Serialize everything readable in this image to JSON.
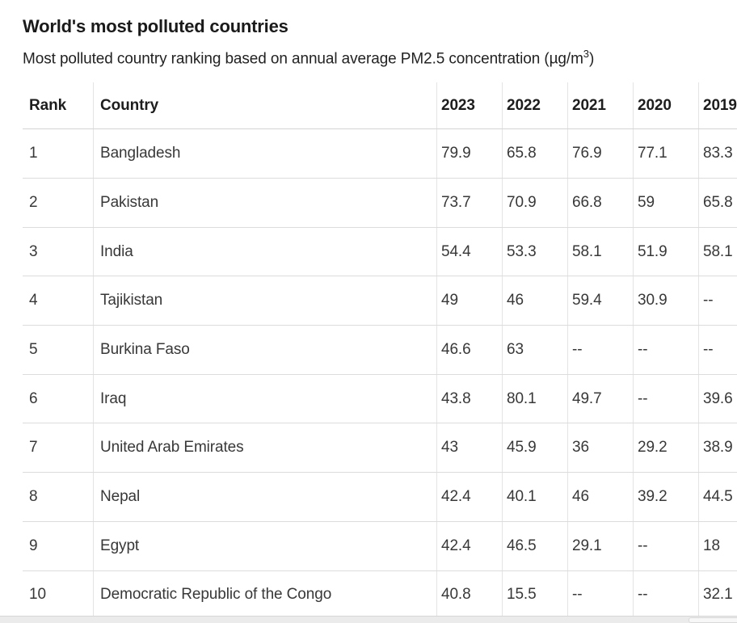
{
  "chart_data": {
    "type": "table",
    "title": "World's most polluted countries",
    "subtitle": "Most polluted country ranking based on annual average PM2.5 concentration (µg/m³)",
    "columns": [
      "Rank",
      "Country",
      "2023",
      "2022",
      "2021",
      "2020",
      "2019"
    ],
    "rows": [
      {
        "rank": "1",
        "country": "Bangladesh",
        "values": [
          "79.9",
          "65.8",
          "76.9",
          "77.1",
          "83.3"
        ]
      },
      {
        "rank": "2",
        "country": "Pakistan",
        "values": [
          "73.7",
          "70.9",
          "66.8",
          "59",
          "65.8"
        ]
      },
      {
        "rank": "3",
        "country": "India",
        "values": [
          "54.4",
          "53.3",
          "58.1",
          "51.9",
          "58.1"
        ]
      },
      {
        "rank": "4",
        "country": "Tajikistan",
        "values": [
          "49",
          "46",
          "59.4",
          "30.9",
          "--"
        ]
      },
      {
        "rank": "5",
        "country": "Burkina Faso",
        "values": [
          "46.6",
          "63",
          "--",
          "--",
          "--"
        ]
      },
      {
        "rank": "6",
        "country": "Iraq",
        "values": [
          "43.8",
          "80.1",
          "49.7",
          "--",
          "39.6"
        ]
      },
      {
        "rank": "7",
        "country": "United Arab Emirates",
        "values": [
          "43",
          "45.9",
          "36",
          "29.2",
          "38.9"
        ]
      },
      {
        "rank": "8",
        "country": "Nepal",
        "values": [
          "42.4",
          "40.1",
          "46",
          "39.2",
          "44.5"
        ]
      },
      {
        "rank": "9",
        "country": "Egypt",
        "values": [
          "42.4",
          "46.5",
          "29.1",
          "--",
          "18"
        ]
      },
      {
        "rank": "10",
        "country": "Democratic Republic of the Congo",
        "values": [
          "40.8",
          "15.5",
          "--",
          "--",
          "32.1"
        ]
      }
    ],
    "missing_value_marker": "--",
    "layout": {
      "grid": "row-and-column-separators",
      "header_bold": true,
      "values_align": "left"
    }
  },
  "subtitle_parts": {
    "prefix": "Most polluted country ranking based on annual average PM2.5 concentration (µg/m",
    "sup": "3",
    "suffix": ")"
  },
  "colors": {
    "title_text": "#1a1a1a",
    "body_text": "#383838",
    "row_border": "#dcdcdc",
    "column_border": "#e4e4e4",
    "scrollbar_track": "#ebebeb"
  }
}
